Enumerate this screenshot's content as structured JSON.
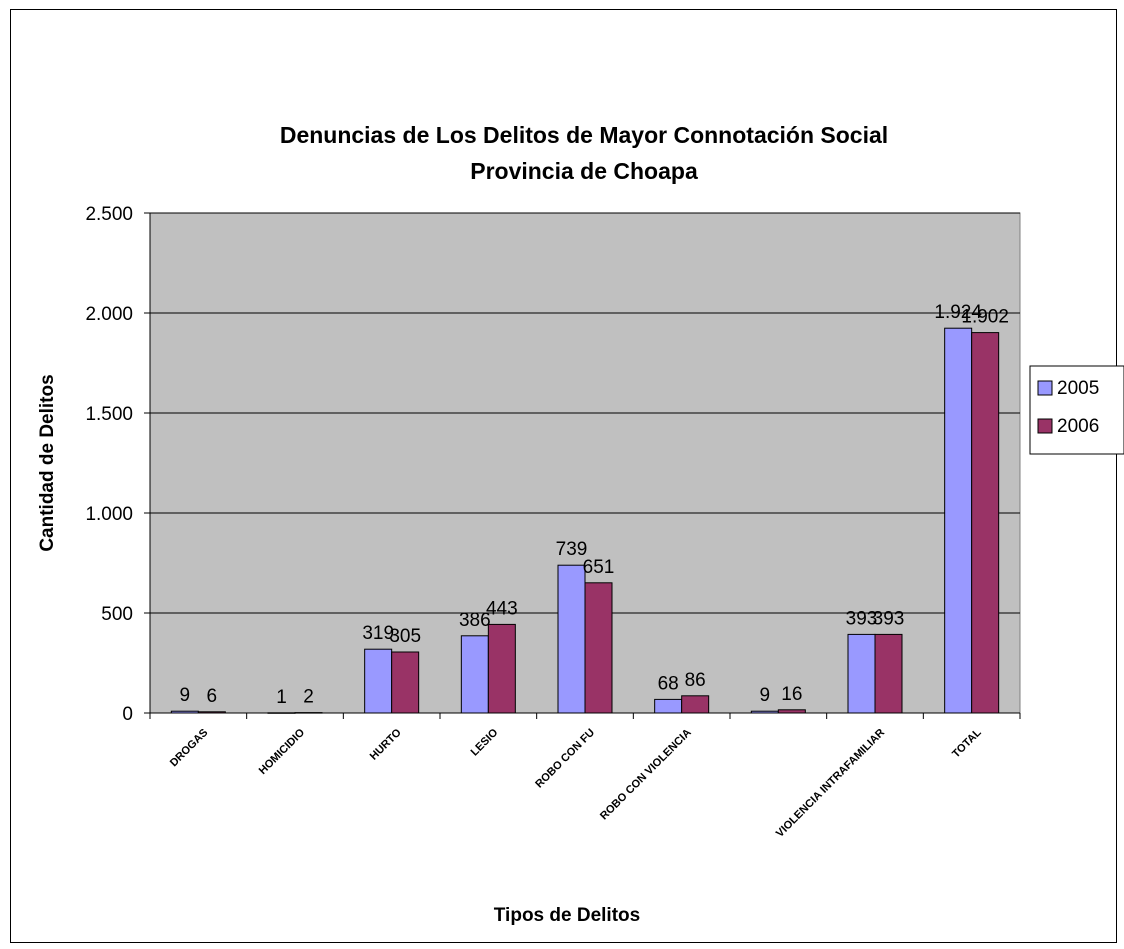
{
  "chart_data": {
    "type": "bar",
    "title": [
      "Denuncias de Los  Delitos de Mayor Connotación Social",
      "Provincia de Choapa"
    ],
    "xlabel": "Tipos de Delitos",
    "ylabel": "Cantidad de Delitos",
    "ylim": [
      0,
      2500
    ],
    "yticks": [
      0,
      500,
      1000,
      1500,
      2000,
      2500
    ],
    "ytick_labels": [
      "0",
      "500",
      "1.000",
      "1.500",
      "2.000",
      "2.500"
    ],
    "grid": true,
    "legend_position": "right",
    "categories": [
      "DROGAS",
      "HOMICIDIO",
      "HURTO",
      "LESIO",
      "ROBO CON FU",
      "ROBO CON VIOLENCIA",
      "",
      "VIOLENCIA INTRAFAMILIAR",
      "TOTAL"
    ],
    "series": [
      {
        "name": "2005",
        "color": "#9999ff",
        "values": [
          9,
          1,
          319,
          386,
          739,
          68,
          9,
          393,
          1924
        ],
        "labels": [
          "9",
          "1",
          "319",
          "386",
          "739",
          "68",
          "9",
          "393",
          "1.924"
        ]
      },
      {
        "name": "2006",
        "color": "#993366",
        "values": [
          6,
          2,
          305,
          443,
          651,
          86,
          16,
          393,
          1902
        ],
        "labels": [
          "6",
          "2",
          "305",
          "443",
          "651",
          "86",
          "16",
          "393",
          "1.902"
        ]
      }
    ],
    "plot_background": "#c0c0c0"
  }
}
